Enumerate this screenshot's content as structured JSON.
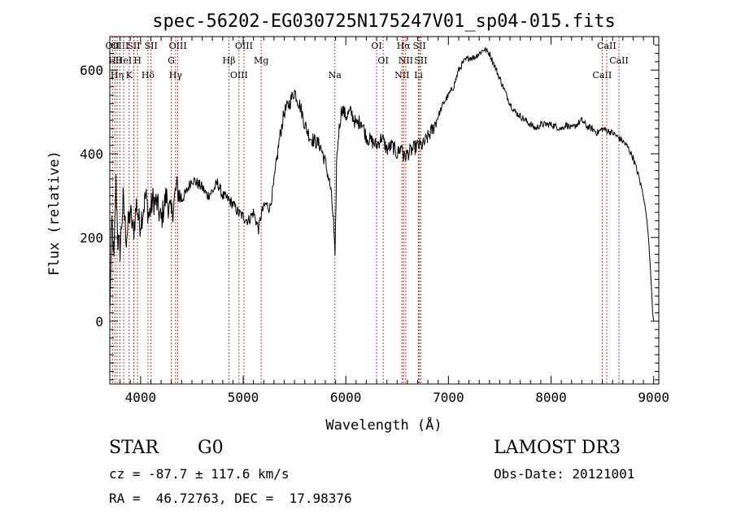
{
  "chart_data": {
    "type": "line",
    "title": "spec-56202-EG030725N175247V01_sp04-015.fits",
    "xlabel": "Wavelength (Å)",
    "ylabel": "Flux (relative)",
    "xlim": [
      3700,
      9050
    ],
    "ylim": [
      -150,
      680
    ],
    "xticks": [
      4000,
      5000,
      6000,
      7000,
      8000,
      9000
    ],
    "yticks": [
      0,
      200,
      400,
      600
    ],
    "grid": false,
    "series": [
      {
        "x": [
          3700,
          3720,
          3740,
          3760,
          3780,
          3800,
          3830,
          3860,
          3900,
          3930,
          3960,
          3990,
          4020,
          4050,
          4080,
          4120,
          4160,
          4200,
          4250,
          4300,
          4350,
          4400,
          4450,
          4500,
          4550,
          4600,
          4650,
          4700,
          4750,
          4800,
          4860,
          4900,
          4950,
          5000,
          5050,
          5100,
          5150,
          5180,
          5220,
          5260,
          5300,
          5350,
          5400,
          5450,
          5500,
          5530,
          5560,
          5600,
          5650,
          5700,
          5750,
          5800,
          5850,
          5880,
          5895,
          5910,
          5930,
          5960,
          6000,
          6050,
          6100,
          6150,
          6200,
          6250,
          6300,
          6350,
          6400,
          6450,
          6500,
          6550,
          6563,
          6600,
          6650,
          6700,
          6750,
          6800,
          6850,
          6900,
          6950,
          7000,
          7050,
          7100,
          7150,
          7200,
          7250,
          7300,
          7350,
          7400,
          7450,
          7500,
          7550,
          7600,
          7650,
          7700,
          7750,
          7800,
          7850,
          7900,
          7950,
          8000,
          8050,
          8100,
          8150,
          8200,
          8250,
          8300,
          8350,
          8400,
          8450,
          8500,
          8550,
          8600,
          8650,
          8700,
          8750,
          8800,
          8850,
          8900,
          8930,
          8950,
          8970,
          8990,
          9000
        ],
        "y": [
          20,
          240,
          140,
          330,
          190,
          170,
          290,
          200,
          260,
          210,
          280,
          230,
          260,
          300,
          250,
          290,
          280,
          240,
          300,
          250,
          320,
          290,
          310,
          340,
          330,
          320,
          300,
          310,
          330,
          300,
          290,
          280,
          260,
          250,
          240,
          260,
          220,
          260,
          280,
          270,
          330,
          430,
          500,
          520,
          550,
          530,
          510,
          470,
          440,
          430,
          420,
          380,
          320,
          240,
          140,
          380,
          450,
          510,
          490,
          500,
          470,
          480,
          440,
          430,
          420,
          440,
          410,
          420,
          400,
          420,
          390,
          400,
          410,
          420,
          420,
          440,
          460,
          490,
          520,
          540,
          560,
          600,
          620,
          630,
          630,
          640,
          650,
          640,
          610,
          580,
          550,
          520,
          500,
          490,
          480,
          470,
          460,
          470,
          470,
          470,
          465,
          460,
          470,
          460,
          470,
          480,
          465,
          460,
          450,
          460,
          455,
          450,
          440,
          430,
          415,
          390,
          350,
          300,
          250,
          200,
          120,
          20,
          0
        ]
      }
    ],
    "line_markers": [
      {
        "x": 3727,
        "label": "OII"
      },
      {
        "x": 3750,
        "label": "Hθ"
      },
      {
        "x": 3771,
        "label": "Hη"
      },
      {
        "x": 3798,
        "label": "OIII"
      },
      {
        "x": 3835,
        "label": "HeI"
      },
      {
        "x": 3889,
        "label": "K"
      },
      {
        "x": 3934,
        "label": "SII"
      },
      {
        "x": 3970,
        "label": "H"
      },
      {
        "x": 4072,
        "label": "Hδ"
      },
      {
        "x": 4102,
        "label": "SII"
      },
      {
        "x": 4300,
        "label": "G"
      },
      {
        "x": 4341,
        "label": "Hγ"
      },
      {
        "x": 4363,
        "label": "OIII"
      },
      {
        "x": 4861,
        "label": "Hβ"
      },
      {
        "x": 4959,
        "label": "OIII"
      },
      {
        "x": 5007,
        "label": "OIII"
      },
      {
        "x": 5175,
        "label": "Mg"
      },
      {
        "x": 5893,
        "label": "Na"
      },
      {
        "x": 6300,
        "label": "OI"
      },
      {
        "x": 6364,
        "label": "OI"
      },
      {
        "x": 6548,
        "label": "NII"
      },
      {
        "x": 6563,
        "label": "Hα"
      },
      {
        "x": 6584,
        "label": "NII"
      },
      {
        "x": 6708,
        "label": "Li"
      },
      {
        "x": 6717,
        "label": "SII"
      },
      {
        "x": 6731,
        "label": "SII"
      },
      {
        "x": 8498,
        "label": "CaII"
      },
      {
        "x": 8542,
        "label": "CaII"
      },
      {
        "x": 8662,
        "label": "CaII"
      }
    ]
  },
  "info": {
    "class_label": "STAR",
    "subclass_label": "G0",
    "survey_label": "LAMOST DR3",
    "cz_text": "cz = -87.7 ± 117.6 km/s",
    "obs_date_text": "Obs-Date: 20121001",
    "coords_text": "RA =  46.72763, DEC =  17.98376"
  }
}
